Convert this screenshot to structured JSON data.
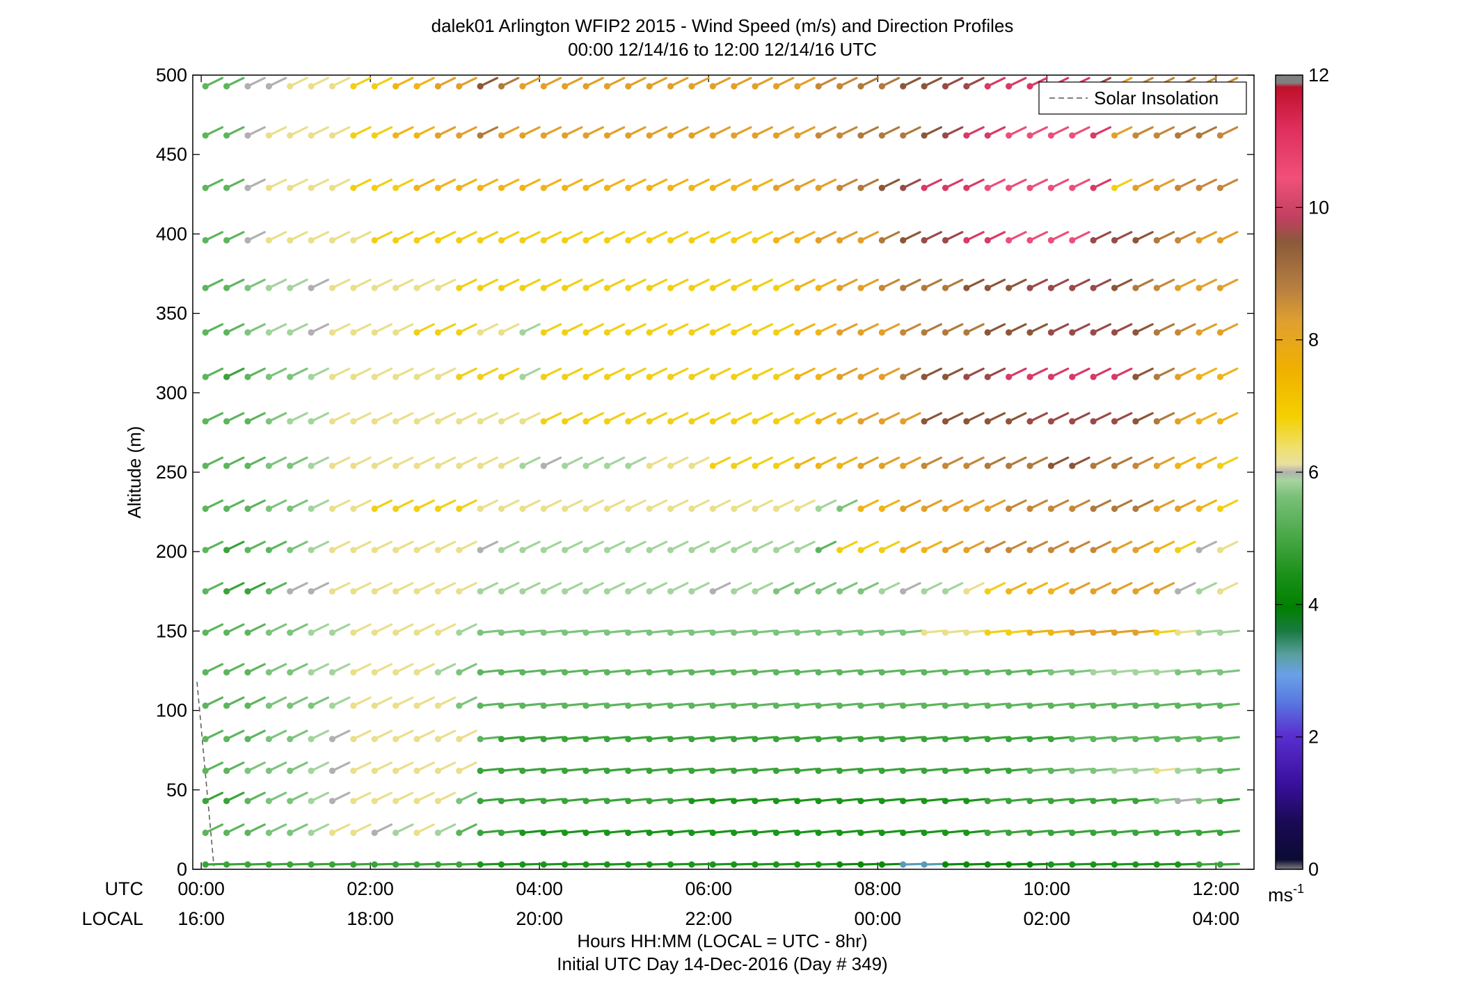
{
  "chart_data": {
    "type": "scatter",
    "title_line1": "dalek01 Arlington WFIP2 2015 - Wind Speed (m/s) and Direction Profiles",
    "title_line2": "00:00 12/14/16 to 12:00 12/14/16  UTC",
    "ylabel": "Altitude (m)",
    "ylim": [
      0,
      500
    ],
    "yticks": [
      "0",
      "50",
      "100",
      "150",
      "200",
      "250",
      "300",
      "350",
      "400",
      "450",
      "500"
    ],
    "xlim_hours": [
      -0.1,
      12.45
    ],
    "x_row_label_utc": "UTC",
    "x_row_label_local": "LOCAL",
    "xticks_utc": [
      "00:00",
      "02:00",
      "04:00",
      "06:00",
      "08:00",
      "10:00",
      "12:00"
    ],
    "xticks_local": [
      "16:00",
      "18:00",
      "20:00",
      "22:00",
      "00:00",
      "02:00",
      "04:00"
    ],
    "xlabel_line1": "Hours HH:MM  (LOCAL = UTC - 8hr)",
    "xlabel_line2": "Initial UTC Day 14-Dec-2016 (Day # 349)",
    "legend": {
      "entry": "Solar Insolation",
      "placement": "top-right",
      "style": "dashed",
      "color": "#808080"
    },
    "colorbar": {
      "range": [
        0,
        12
      ],
      "ticks": [
        "0",
        "2",
        "4",
        "6",
        "8",
        "10",
        "12"
      ],
      "unit": "ms",
      "unit_exp": "-1"
    },
    "solar_insolation": {
      "x": [
        -0.05,
        0.15
      ],
      "y": [
        118,
        2
      ]
    },
    "barb_times_hours_start": 0.05,
    "barb_times_hours_step": 0.25,
    "barb_count_per_level": 49,
    "altitudes_m": [
      3,
      23,
      43,
      62,
      82,
      103,
      124,
      149,
      175,
      201,
      227,
      254,
      282,
      310,
      338,
      366,
      396,
      429,
      462,
      493
    ],
    "wind_speed_ms_rows": [
      [
        4,
        4,
        4,
        4,
        4,
        4,
        4,
        4,
        4,
        4,
        4,
        4,
        4,
        3.5,
        3.5,
        3.5,
        3.5,
        3.5,
        3.5,
        3.5,
        3.5,
        3.5,
        3.5,
        3.5,
        3.5,
        3.5,
        3.5,
        3.5,
        3.5,
        3.5,
        3,
        3,
        3,
        2.5,
        2.5,
        3,
        3,
        3,
        3,
        3,
        3.5,
        3.5,
        3.5,
        3.5,
        3.5,
        3.5,
        3.5,
        4,
        4
      ],
      [
        4.5,
        4.5,
        4.5,
        5,
        5,
        5.5,
        6.5,
        6.5,
        6,
        5.5,
        6.5,
        5.5,
        4.5,
        4,
        4,
        3.5,
        3.5,
        3.5,
        3.5,
        3.5,
        3.5,
        3.5,
        3.5,
        3.5,
        3.5,
        3.5,
        3.5,
        3.5,
        3.5,
        3.5,
        3.5,
        3.5,
        3.5,
        3.5,
        3.5,
        3.5,
        3.5,
        4,
        4,
        4,
        4,
        4,
        4,
        4,
        4,
        4,
        4,
        4,
        4
      ],
      [
        4,
        4,
        4.5,
        5,
        5,
        5.5,
        6,
        6.5,
        6.5,
        6.5,
        6.5,
        6.5,
        5,
        4,
        4,
        4,
        4,
        4,
        4,
        4,
        4,
        4,
        4,
        3.5,
        3.5,
        3.5,
        3.5,
        3.5,
        3.5,
        3.5,
        3.5,
        3.5,
        3.5,
        3.5,
        3.5,
        3.5,
        3.5,
        4,
        4,
        4,
        4,
        4,
        4,
        4,
        4,
        5,
        6,
        5,
        4
      ],
      [
        4.5,
        4.5,
        5,
        5,
        5,
        5.5,
        6,
        6.5,
        6.5,
        6.5,
        6.5,
        6.5,
        6.5,
        4,
        4,
        4,
        4,
        4,
        4,
        4,
        4,
        4,
        4,
        4,
        4,
        4,
        4,
        4,
        4,
        4,
        4,
        4,
        4,
        4,
        4,
        4,
        4,
        4,
        4,
        4.5,
        4.5,
        5,
        5,
        5.5,
        5.5,
        6.5,
        5.5,
        5,
        4.5
      ],
      [
        4.5,
        4.5,
        4.5,
        5,
        5,
        5.5,
        6,
        6.5,
        6.5,
        6.5,
        6.5,
        6.5,
        6.5,
        4.5,
        4,
        4,
        4,
        4,
        4,
        4,
        4,
        4,
        4,
        4,
        4,
        4,
        4,
        4,
        4,
        4,
        4,
        4,
        4,
        4,
        4,
        4,
        4,
        4,
        4,
        4,
        4,
        4.5,
        4.5,
        4.5,
        4.5,
        4.5,
        4.5,
        4.5,
        4.5
      ],
      [
        4.5,
        4.5,
        4.5,
        5,
        5,
        5,
        5.5,
        6.5,
        6.5,
        6.5,
        6.5,
        6.5,
        5,
        4.5,
        4.5,
        4.5,
        4.5,
        4.5,
        4.5,
        4.5,
        4.5,
        4.5,
        4.5,
        4.5,
        4.5,
        4.5,
        4.5,
        4.5,
        4.5,
        4.5,
        4.5,
        4.5,
        4.5,
        4.5,
        4.5,
        4.5,
        4.5,
        4.5,
        4.5,
        4.5,
        4.5,
        4.5,
        4.5,
        4.5,
        4.5,
        4.5,
        4.5,
        4.5,
        4.5
      ],
      [
        4.5,
        4.5,
        4.5,
        5,
        5,
        5.5,
        5.5,
        6.5,
        6.5,
        6.5,
        6.5,
        5.5,
        5,
        4.5,
        4.5,
        4.5,
        4.5,
        4.5,
        4.5,
        4.5,
        4.5,
        4.5,
        4.5,
        4.5,
        4.5,
        4.5,
        4.5,
        4.5,
        4.5,
        4.5,
        4.5,
        4.5,
        4.5,
        4.5,
        4.5,
        4.5,
        4.5,
        4.5,
        4.5,
        4.5,
        5,
        5,
        5.5,
        5.5,
        5.5,
        5.5,
        5,
        5,
        5
      ],
      [
        4.5,
        4.5,
        4.5,
        5,
        5,
        5.5,
        5.5,
        6.5,
        6.5,
        6.5,
        6.5,
        6.5,
        5.5,
        5,
        5,
        5,
        5,
        5,
        5,
        5,
        5,
        5,
        5,
        5,
        5,
        5,
        5,
        5,
        5,
        5,
        5,
        5,
        5,
        5,
        6.5,
        6.5,
        6.5,
        7,
        7,
        7.5,
        7.5,
        8,
        8,
        8,
        8,
        7,
        6.5,
        5.5,
        5.5
      ],
      [
        4.5,
        4,
        4,
        4.5,
        6,
        6,
        6.5,
        6.5,
        6.5,
        6.5,
        6.5,
        6.5,
        6.5,
        5.5,
        5.5,
        5.5,
        5.5,
        5.5,
        5.5,
        5.5,
        5.5,
        5.5,
        5.5,
        5.5,
        6,
        5.5,
        5.5,
        5,
        5,
        5,
        5,
        5,
        5.5,
        6,
        5.5,
        5.5,
        6.5,
        7,
        7.5,
        7.5,
        7.5,
        8,
        8,
        8,
        8,
        8,
        6,
        5.5,
        6.5
      ],
      [
        4.5,
        4,
        4.5,
        4.5,
        5,
        5.5,
        6.5,
        6.5,
        6.5,
        6.5,
        6.5,
        6.5,
        6.5,
        6,
        5.5,
        5.5,
        5.5,
        5.5,
        5.5,
        5.5,
        5.5,
        5.5,
        5.5,
        5.5,
        5.5,
        5.5,
        5.5,
        5.5,
        5.5,
        4.5,
        7,
        7,
        7,
        7.5,
        7.5,
        8,
        8,
        8.5,
        8.5,
        8.5,
        8.5,
        8.5,
        8.5,
        8,
        8,
        7.5,
        7,
        6,
        6.5
      ],
      [
        4.5,
        4.5,
        4.5,
        5,
        5,
        5.5,
        6.5,
        6.5,
        7,
        7,
        7,
        7,
        7,
        6.5,
        6.5,
        6.5,
        6.5,
        6.5,
        6.5,
        6.5,
        6.5,
        6.5,
        6.5,
        6.5,
        6.5,
        6.5,
        6.5,
        6.5,
        6.5,
        5.5,
        5,
        7.5,
        7.5,
        8,
        8,
        8,
        8,
        8,
        8.5,
        8.5,
        8.5,
        8.5,
        9,
        9,
        9,
        8,
        8,
        7.5,
        7
      ],
      [
        4.5,
        4.5,
        4.5,
        5,
        5,
        5.5,
        6.5,
        6.5,
        6.5,
        6.5,
        6.5,
        6.5,
        6.5,
        6.5,
        6.5,
        5.5,
        6,
        5.5,
        5.5,
        5.5,
        5.5,
        6.5,
        6.5,
        6.5,
        7,
        7,
        7,
        7,
        7.5,
        7.5,
        7.5,
        8,
        8,
        8,
        8.5,
        8.5,
        8.5,
        9,
        9,
        9,
        9.5,
        9.5,
        9,
        9,
        8.5,
        8,
        7.5,
        7.5,
        7
      ],
      [
        4.5,
        4.5,
        4.5,
        5,
        5.5,
        5.5,
        6.5,
        6.5,
        6.5,
        6.5,
        6.5,
        6.5,
        6.5,
        6.5,
        6.5,
        6.5,
        7,
        7,
        7,
        7,
        7,
        7,
        7,
        7,
        7,
        7,
        7,
        7,
        7,
        7.5,
        7.5,
        8,
        8,
        8,
        9.5,
        9.5,
        9.5,
        9.5,
        9.5,
        10,
        10,
        10,
        10,
        10,
        9.5,
        9,
        8,
        7.5,
        7.5
      ],
      [
        4.5,
        4,
        4.5,
        5,
        5,
        5.5,
        6.5,
        6.5,
        6.5,
        6.5,
        6.5,
        6.5,
        7,
        7,
        7,
        5.5,
        7,
        7,
        7,
        7,
        7,
        7,
        7,
        7,
        7,
        7,
        7,
        7,
        7.5,
        7.5,
        8,
        8,
        8,
        9,
        9.5,
        9.5,
        10,
        10,
        10.5,
        10.5,
        10.5,
        10.5,
        10.5,
        10.5,
        9.5,
        9,
        8,
        7.5,
        7.5
      ],
      [
        4.5,
        4.5,
        5,
        5.5,
        5.5,
        6,
        6.5,
        6.5,
        6.5,
        6.5,
        7,
        7,
        7,
        6.5,
        6.5,
        5.5,
        7,
        7,
        7,
        7,
        7,
        7,
        7,
        7,
        7,
        7,
        7,
        7,
        7.5,
        7.5,
        8,
        8,
        8,
        8.5,
        9,
        9,
        9,
        9.5,
        9.5,
        9.5,
        10,
        10,
        10,
        10,
        9.5,
        9,
        8.5,
        8,
        8
      ],
      [
        4.5,
        4.5,
        5,
        5.5,
        5.5,
        6,
        6.5,
        6.5,
        6.5,
        6.5,
        6.5,
        6.5,
        7,
        7,
        7,
        7,
        7,
        7,
        7,
        7,
        7,
        7,
        7,
        7,
        7,
        7,
        7,
        7,
        7.5,
        7.5,
        8,
        8,
        8.5,
        9,
        9,
        9,
        9.5,
        9.5,
        9.5,
        10,
        10,
        10,
        10,
        9.5,
        9,
        8.5,
        8,
        8,
        8
      ],
      [
        4.5,
        4.5,
        6,
        6.5,
        6.5,
        6.5,
        6.5,
        6.5,
        7,
        7,
        7,
        7,
        7,
        7,
        7,
        7,
        7,
        7,
        7,
        7,
        7,
        7,
        7,
        7,
        7,
        7,
        7,
        7.5,
        7.5,
        8,
        8,
        8,
        9,
        9.5,
        10,
        10,
        10.5,
        10.5,
        11,
        11,
        11,
        11,
        10,
        10,
        9.5,
        9,
        8.5,
        8,
        8
      ],
      [
        4.5,
        4.5,
        6,
        6.5,
        6.5,
        6.5,
        6.5,
        7,
        7,
        7,
        7.5,
        7.5,
        7.5,
        7.5,
        7.5,
        7.5,
        7.5,
        7.5,
        7.5,
        7.5,
        7.5,
        7.5,
        7.5,
        7.5,
        7.5,
        7.5,
        7.5,
        8,
        8,
        8,
        8.5,
        9,
        9.5,
        10,
        10.5,
        10.5,
        10.5,
        11,
        11,
        11,
        11,
        11,
        10.5,
        7,
        8,
        8,
        8.5,
        8.5,
        8.5
      ],
      [
        4.5,
        4.5,
        6,
        6.5,
        6.5,
        6.5,
        6.5,
        7,
        7,
        7.5,
        7.5,
        8,
        8,
        9,
        8,
        8,
        8,
        8,
        8,
        8,
        8,
        8,
        8,
        8,
        8,
        8,
        8,
        8,
        8,
        8.5,
        8.5,
        9,
        9,
        9,
        9.5,
        10,
        10.5,
        10.5,
        11,
        11,
        11,
        11,
        10.5,
        8,
        8.5,
        8.5,
        9,
        9,
        8.5
      ],
      [
        4.5,
        4.5,
        6,
        6,
        6.5,
        6.5,
        6.5,
        7,
        7,
        7.5,
        7.5,
        8,
        8,
        9.5,
        9,
        8,
        8,
        8,
        8,
        8,
        8,
        8,
        8,
        8,
        8,
        8,
        8,
        8,
        8,
        8.5,
        8.5,
        9,
        9,
        9.5,
        9.5,
        10,
        10,
        10.5,
        10.5,
        10.5,
        10.5,
        10.5,
        10,
        8,
        8.5,
        8.5,
        9,
        8.5,
        8.5
      ]
    ]
  }
}
